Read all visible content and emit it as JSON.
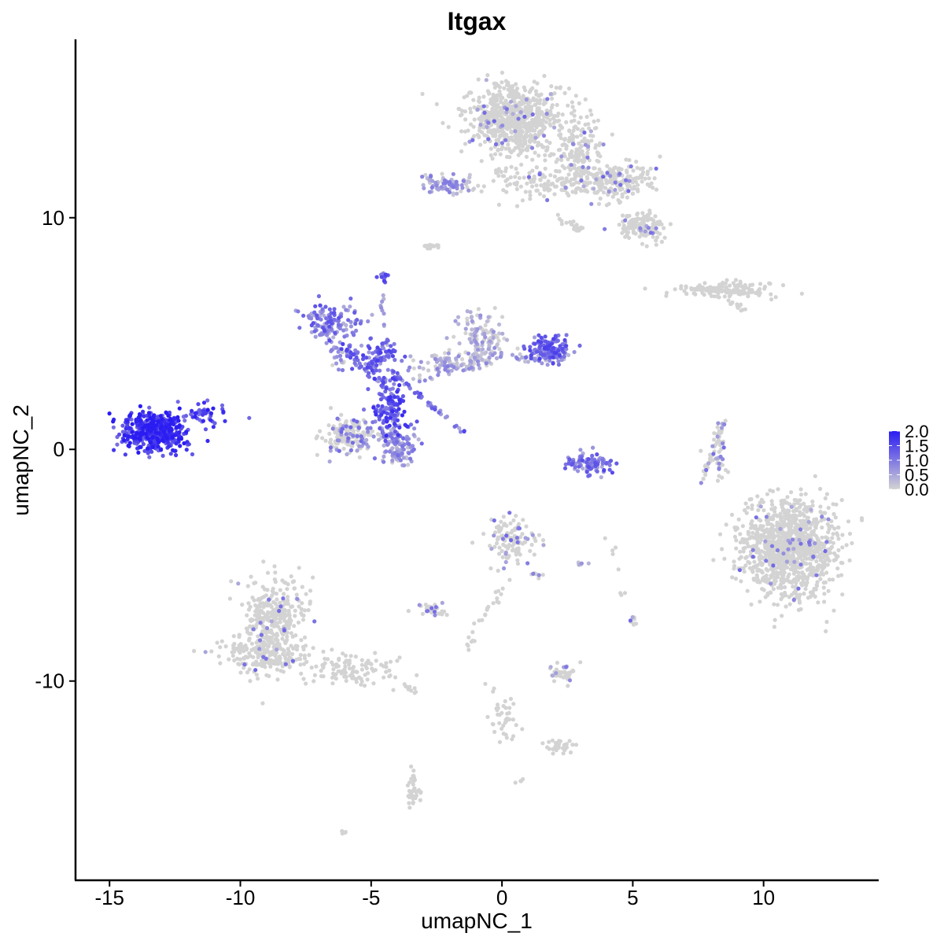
{
  "chart_data": {
    "type": "scatter",
    "title": "Itgax",
    "xlabel": "umapNC_1",
    "ylabel": "umapNC_2",
    "xlim": [
      -16.3,
      14.4
    ],
    "ylim": [
      -18.6,
      17.7
    ],
    "x_ticks": [
      -15,
      -10,
      -5,
      0,
      5,
      10
    ],
    "x_tick_labels": [
      "-15",
      "-10",
      "-5",
      "0",
      "5",
      "10"
    ],
    "y_ticks": [
      -10,
      0,
      10
    ],
    "y_tick_labels": [
      "-10",
      "0",
      "10"
    ],
    "grid": false,
    "legend_position": "right",
    "color_scale": {
      "low": "#d3d3d3",
      "high": "#2b1cf2",
      "min": 0,
      "max": 2.0,
      "breaks": [
        0.0,
        0.5,
        1.0,
        1.5,
        2.0
      ],
      "break_labels": [
        "0.0",
        "0.5",
        "1.0",
        "1.5",
        "2.0"
      ]
    },
    "clusters": [
      {
        "cx": 0.5,
        "cy": 14.3,
        "sx": 1.2,
        "sy": 1.0,
        "n": 700,
        "expr": 0.03,
        "seed": 1
      },
      {
        "cx": 2.9,
        "cy": 12.8,
        "sx": 0.6,
        "sy": 1.1,
        "n": 160,
        "expr": 0.04,
        "seed": 2
      },
      {
        "cx": 4.4,
        "cy": 11.6,
        "sx": 1.0,
        "sy": 0.5,
        "n": 200,
        "expr": 0.05,
        "seed": 3
      },
      {
        "cx": 5.3,
        "cy": 9.6,
        "sx": 0.6,
        "sy": 0.4,
        "n": 120,
        "expr": 0.02,
        "seed": 4
      },
      {
        "cx": 1.4,
        "cy": 11.5,
        "sx": 1.3,
        "sy": 0.5,
        "n": 120,
        "expr": 0.02,
        "seed": 5
      },
      {
        "cx": -2.1,
        "cy": 11.4,
        "sx": 0.9,
        "sy": 0.35,
        "n": 85,
        "expr": 0.45,
        "seed": 6
      },
      {
        "cx": -2.7,
        "cy": 8.8,
        "sx": 0.2,
        "sy": 0.12,
        "n": 14,
        "expr": 0.0,
        "seed": 7
      },
      {
        "cx": -4.5,
        "cy": 7.4,
        "sx": 0.12,
        "sy": 0.15,
        "n": 14,
        "expr": 1.1,
        "seed": 8
      },
      {
        "cx": 8.5,
        "cy": 6.9,
        "sx": 1.3,
        "sy": 0.2,
        "n": 150,
        "expr": 0.0,
        "seed": 9
      },
      {
        "cx": -6.5,
        "cy": 5.4,
        "sx": 0.8,
        "sy": 0.55,
        "n": 120,
        "expr": 0.9,
        "seed": 10
      },
      {
        "cx": -4.7,
        "cy": 4.0,
        "sx": 0.7,
        "sy": 0.5,
        "n": 90,
        "expr": 1.1,
        "seed": 11
      },
      {
        "cx": -4.3,
        "cy": 1.8,
        "sx": 0.4,
        "sy": 0.8,
        "n": 130,
        "expr": 1.3,
        "seed": 12
      },
      {
        "cx": -5.8,
        "cy": 0.6,
        "sx": 0.65,
        "sy": 0.5,
        "n": 160,
        "expr": 0.1,
        "seed": 13
      },
      {
        "cx": -4.0,
        "cy": 0.2,
        "sx": 0.5,
        "sy": 0.6,
        "n": 130,
        "expr": 0.6,
        "seed": 14
      },
      {
        "cx": -0.8,
        "cy": 4.8,
        "sx": 0.6,
        "sy": 0.8,
        "n": 130,
        "expr": 0.2,
        "seed": 15
      },
      {
        "cx": 1.8,
        "cy": 4.3,
        "sx": 0.55,
        "sy": 0.4,
        "n": 130,
        "expr": 1.1,
        "seed": 16
      },
      {
        "cx": -2.0,
        "cy": 3.8,
        "sx": 1.0,
        "sy": 0.3,
        "n": 60,
        "expr": 0.3,
        "seed": 17
      },
      {
        "cx": -13.3,
        "cy": 0.8,
        "sx": 0.8,
        "sy": 0.55,
        "n": 520,
        "expr": 1.6,
        "seed": 18
      },
      {
        "cx": -11.4,
        "cy": 1.5,
        "sx": 0.6,
        "sy": 0.3,
        "n": 40,
        "expr": 1.5,
        "seed": 19
      },
      {
        "cx": 3.3,
        "cy": -0.6,
        "sx": 0.6,
        "sy": 0.3,
        "n": 70,
        "expr": 0.9,
        "seed": 20
      },
      {
        "cx": 8.3,
        "cy": -0.2,
        "sx": 0.25,
        "sy": 0.8,
        "n": 35,
        "expr": 0.1,
        "seed": 21
      },
      {
        "cx": 11.0,
        "cy": -4.2,
        "sx": 1.2,
        "sy": 1.4,
        "n": 1100,
        "expr": 0.02,
        "seed": 22
      },
      {
        "cx": 0.3,
        "cy": -4.0,
        "sx": 0.7,
        "sy": 0.7,
        "n": 120,
        "expr": 0.08,
        "seed": 23
      },
      {
        "cx": -8.8,
        "cy": -7.3,
        "sx": 0.8,
        "sy": 1.2,
        "n": 330,
        "expr": 0.02,
        "seed": 24
      },
      {
        "cx": -9.1,
        "cy": -8.9,
        "sx": 1.2,
        "sy": 0.55,
        "n": 170,
        "expr": 0.02,
        "seed": 25
      },
      {
        "cx": -5.8,
        "cy": -9.5,
        "sx": 1.2,
        "sy": 0.5,
        "n": 110,
        "expr": 0.0,
        "seed": 26
      },
      {
        "cx": -2.7,
        "cy": -6.9,
        "sx": 0.4,
        "sy": 0.2,
        "n": 30,
        "expr": 0.1,
        "seed": 27
      },
      {
        "cx": 2.3,
        "cy": -9.7,
        "sx": 0.35,
        "sy": 0.3,
        "n": 40,
        "expr": 0.1,
        "seed": 28
      },
      {
        "cx": 2.2,
        "cy": -12.8,
        "sx": 0.35,
        "sy": 0.2,
        "n": 28,
        "expr": 0.0,
        "seed": 29
      },
      {
        "cx": -3.4,
        "cy": -14.8,
        "sx": 0.2,
        "sy": 0.6,
        "n": 38,
        "expr": 0.0,
        "seed": 30
      },
      {
        "cx": 0.0,
        "cy": -11.6,
        "sx": 0.35,
        "sy": 0.9,
        "n": 40,
        "expr": 0.0,
        "seed": 31
      },
      {
        "cx": 5.0,
        "cy": -7.5,
        "sx": 0.15,
        "sy": 0.25,
        "n": 10,
        "expr": 0.1,
        "seed": 32
      },
      {
        "cx": -6.0,
        "cy": -16.5,
        "sx": 0.1,
        "sy": 0.08,
        "n": 4,
        "expr": 0.0,
        "seed": 33
      },
      {
        "cx": 0.7,
        "cy": -14.3,
        "sx": 0.1,
        "sy": 0.08,
        "n": 4,
        "expr": 0.0,
        "seed": 34
      },
      {
        "cx": 3.0,
        "cy": -5.0,
        "sx": 0.1,
        "sy": 0.08,
        "n": 5,
        "expr": 0.3,
        "seed": 35
      }
    ],
    "segments": [
      {
        "x1": -4.3,
        "y1": 3.4,
        "x2": -1.4,
        "y2": 0.7,
        "n": 45,
        "spread": 0.1,
        "expr": 1.0,
        "seed": 41
      },
      {
        "x1": -3.5,
        "y1": 3.0,
        "x2": 0.0,
        "y2": 4.2,
        "n": 50,
        "spread": 0.25,
        "expr": 0.4,
        "seed": 42
      },
      {
        "x1": 0.3,
        "y1": 4.0,
        "x2": 2.5,
        "y2": 4.0,
        "n": 40,
        "spread": 0.2,
        "expr": 0.6,
        "seed": 43
      },
      {
        "x1": -6.0,
        "y1": 4.3,
        "x2": -4.5,
        "y2": 2.8,
        "n": 35,
        "spread": 0.2,
        "expr": 1.1,
        "seed": 44
      },
      {
        "x1": -4.6,
        "y1": 6.7,
        "x2": -4.4,
        "y2": 4.5,
        "n": 12,
        "spread": 0.1,
        "expr": 0.7,
        "seed": 45
      },
      {
        "x1": 7.6,
        "y1": -1.5,
        "x2": 8.5,
        "y2": 1.2,
        "n": 40,
        "spread": 0.08,
        "expr": 0.1,
        "seed": 46
      },
      {
        "x1": 0.2,
        "y1": -5.6,
        "x2": -1.3,
        "y2": -8.5,
        "n": 25,
        "spread": 0.2,
        "expr": 0.0,
        "seed": 47
      },
      {
        "x1": 1.2,
        "y1": -5.6,
        "x2": 1.3,
        "y2": -5.4,
        "n": 8,
        "spread": 0.3,
        "expr": 0.1,
        "seed": 48
      },
      {
        "x1": -3.7,
        "y1": -10.2,
        "x2": -3.2,
        "y2": -10.5,
        "n": 10,
        "spread": 0.1,
        "expr": 0.0,
        "seed": 49
      },
      {
        "x1": -6.0,
        "y1": 3.6,
        "x2": -7.3,
        "y2": 5.8,
        "n": 30,
        "spread": 0.3,
        "expr": 0.5,
        "seed": 50
      },
      {
        "x1": 8.5,
        "y1": 6.5,
        "x2": 9.3,
        "y2": 6.0,
        "n": 12,
        "spread": 0.15,
        "expr": 0.0,
        "seed": 51
      },
      {
        "x1": 1.8,
        "y1": 10.2,
        "x2": 3.2,
        "y2": 9.4,
        "n": 20,
        "spread": 0.2,
        "expr": 0.0,
        "seed": 52
      },
      {
        "x1": 2.6,
        "y1": -0.6,
        "x2": 4.2,
        "y2": -0.8,
        "n": 25,
        "spread": 0.3,
        "expr": 1.0,
        "seed": 53
      },
      {
        "x1": 4.0,
        "y1": -2.8,
        "x2": 4.7,
        "y2": -6.4,
        "n": 8,
        "spread": 0.15,
        "expr": 0.0,
        "seed": 54
      }
    ]
  }
}
